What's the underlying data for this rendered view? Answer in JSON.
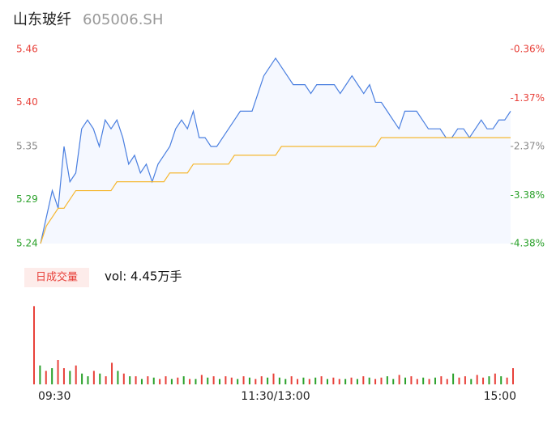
{
  "header": {
    "title": "山东玻纤",
    "code": "605006.SH"
  },
  "chart_data": [
    {
      "type": "line",
      "series": [
        {
          "color": "#4a7fe0",
          "values": [
            5.24,
            5.27,
            5.3,
            5.28,
            5.35,
            5.31,
            5.32,
            5.37,
            5.38,
            5.37,
            5.35,
            5.38,
            5.37,
            5.38,
            5.36,
            5.33,
            5.34,
            5.32,
            5.33,
            5.31,
            5.33,
            5.34,
            5.35,
            5.37,
            5.38,
            5.37,
            5.39,
            5.36,
            5.36,
            5.35,
            5.35,
            5.36,
            5.37,
            5.38,
            5.39,
            5.39,
            5.39,
            5.41,
            5.43,
            5.44,
            5.45,
            5.44,
            5.43,
            5.42,
            5.42,
            5.42,
            5.41,
            5.42,
            5.42,
            5.42,
            5.42,
            5.41,
            5.42,
            5.43,
            5.42,
            5.41,
            5.42,
            5.4,
            5.4,
            5.39,
            5.38,
            5.37,
            5.39,
            5.39,
            5.39,
            5.38,
            5.37,
            5.37,
            5.37,
            5.36,
            5.36,
            5.37,
            5.37,
            5.36,
            5.37,
            5.38,
            5.37,
            5.37,
            5.38,
            5.38,
            5.39
          ]
        },
        {
          "color": "#f5b731",
          "values": [
            5.24,
            5.26,
            5.27,
            5.28,
            5.28,
            5.29,
            5.3,
            5.3,
            5.3,
            5.3,
            5.3,
            5.3,
            5.3,
            5.31,
            5.31,
            5.31,
            5.31,
            5.31,
            5.31,
            5.31,
            5.31,
            5.31,
            5.32,
            5.32,
            5.32,
            5.32,
            5.33,
            5.33,
            5.33,
            5.33,
            5.33,
            5.33,
            5.33,
            5.34,
            5.34,
            5.34,
            5.34,
            5.34,
            5.34,
            5.34,
            5.34,
            5.35,
            5.35,
            5.35,
            5.35,
            5.35,
            5.35,
            5.35,
            5.35,
            5.35,
            5.35,
            5.35,
            5.35,
            5.35,
            5.35,
            5.35,
            5.35,
            5.35,
            5.36,
            5.36,
            5.36,
            5.36,
            5.36,
            5.36,
            5.36,
            5.36,
            5.36,
            5.36,
            5.36,
            5.36,
            5.36,
            5.36,
            5.36,
            5.36,
            5.36,
            5.36,
            5.36,
            5.36,
            5.36,
            5.36,
            5.36
          ]
        }
      ],
      "ylim": [
        5.24,
        5.46
      ],
      "yticks": [
        5.46,
        {
          "value": 5.4,
          "label": "5.40"
        },
        5.35,
        5.29,
        5.24
      ],
      "y2lim": [
        -4.38,
        -0.36
      ],
      "y2ticks": [
        {
          "value": -0.36,
          "label": "-0.36%"
        },
        {
          "value": -1.37,
          "label": "-1.37%"
        },
        {
          "value": -2.37,
          "label": "-2.37%"
        },
        {
          "value": -3.38,
          "label": "-3.38%"
        },
        {
          "value": -4.38,
          "label": "-4.38%"
        }
      ],
      "tick_colors": [
        "#e8413a",
        "#e8413a",
        "#888888",
        "#2aa12a",
        "#2aa12a"
      ],
      "xlim": [
        0,
        240
      ],
      "xticks": [
        {
          "value": 0,
          "label": "09:30"
        },
        {
          "value": 120,
          "label": "11:30/13:00"
        },
        {
          "value": 240,
          "label": "15:00"
        }
      ]
    },
    {
      "type": "bar",
      "label": "日成交量",
      "title": "vol: 4.45万手",
      "ylim": [
        0,
        3000
      ],
      "palette": {
        "r": "#e8413a",
        "g": "#2aa12a"
      },
      "values": [
        2900,
        700,
        500,
        600,
        900,
        600,
        500,
        700,
        400,
        300,
        500,
        400,
        300,
        800,
        500,
        400,
        300,
        300,
        200,
        300,
        250,
        200,
        300,
        200,
        250,
        300,
        200,
        200,
        350,
        250,
        300,
        200,
        300,
        250,
        200,
        300,
        250,
        200,
        300,
        250,
        400,
        250,
        200,
        300,
        200,
        250,
        200,
        250,
        300,
        200,
        250,
        200,
        200,
        250,
        200,
        300,
        250,
        200,
        250,
        300,
        200,
        350,
        250,
        300,
        200,
        250,
        200,
        250,
        300,
        200,
        400,
        250,
        300,
        200,
        350,
        250,
        300,
        400,
        300,
        250,
        600
      ],
      "directions": [
        "r",
        "g",
        "r",
        "g",
        "r",
        "r",
        "g",
        "r",
        "g",
        "g",
        "r",
        "g",
        "r",
        "r",
        "g",
        "r",
        "g",
        "r",
        "g",
        "r",
        "g",
        "r",
        "r",
        "g",
        "r",
        "g",
        "r",
        "g",
        "r",
        "g",
        "r",
        "g",
        "r",
        "r",
        "g",
        "r",
        "g",
        "r",
        "r",
        "g",
        "r",
        "g",
        "g",
        "r",
        "r",
        "g",
        "r",
        "g",
        "r",
        "g",
        "r",
        "r",
        "g",
        "r",
        "g",
        "r",
        "g",
        "r",
        "r",
        "g",
        "g",
        "r",
        "g",
        "r",
        "r",
        "g",
        "r",
        "g",
        "r",
        "r",
        "g",
        "r",
        "r",
        "g",
        "r",
        "r",
        "g",
        "r",
        "g",
        "r",
        "r"
      ]
    }
  ]
}
